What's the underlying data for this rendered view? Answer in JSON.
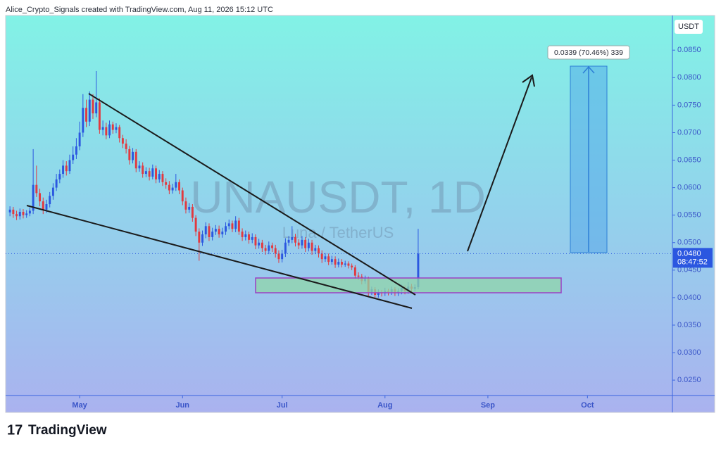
{
  "chart_data": {
    "type": "candlestick",
    "header": "Alice_Crypto_Signals created with TradingView.com, Aug 11, 2026 15:12 UTC",
    "watermark": "UNAUSDT, 1D",
    "watermark_sub": "Luna / TetherUS",
    "currency": "USDT",
    "last_price": {
      "value": 0.048,
      "label": "0.0480"
    },
    "countdown": "08:47:52",
    "measure_label": "0.0339 (70.46%) 339",
    "brand": "TradingView",
    "up_color": "#2b57e0",
    "down_color": "#e2393f",
    "xlim": [
      -22.3,
      178.6
    ],
    "xticks": [
      {
        "value": 0,
        "label": "May"
      },
      {
        "value": 31,
        "label": "Jun"
      },
      {
        "value": 61,
        "label": "Jul"
      },
      {
        "value": 92,
        "label": "Aug"
      },
      {
        "value": 123,
        "label": "Sep"
      },
      {
        "value": 153,
        "label": "Oct"
      }
    ],
    "ylim": [
      0.0222,
      0.0913
    ],
    "yticks": [
      {
        "value": 0.025,
        "label": "0.0250"
      },
      {
        "value": 0.03,
        "label": "0.0300"
      },
      {
        "value": 0.035,
        "label": "0.0350"
      },
      {
        "value": 0.04,
        "label": "0.0400"
      },
      {
        "value": 0.045,
        "label": "0.0450"
      },
      {
        "value": 0.05,
        "label": "0.0500"
      },
      {
        "value": 0.055,
        "label": "0.0550"
      },
      {
        "value": 0.06,
        "label": "0.0600"
      },
      {
        "value": 0.065,
        "label": "0.0650"
      },
      {
        "value": 0.07,
        "label": "0.0700"
      },
      {
        "value": 0.075,
        "label": "0.0750"
      },
      {
        "value": 0.08,
        "label": "0.0800"
      },
      {
        "value": 0.085,
        "label": "0.0850"
      }
    ],
    "x": [
      -21,
      -20,
      -19,
      -18,
      -17,
      -16,
      -15,
      -14,
      -13,
      -12,
      -11,
      -10,
      -9,
      -8,
      -7,
      -6,
      -5,
      -4,
      -3,
      -2,
      -1,
      0,
      1,
      2,
      3,
      4,
      5,
      6,
      7,
      8,
      9,
      10,
      11,
      12,
      13,
      14,
      15,
      16,
      17,
      18,
      19,
      20,
      21,
      22,
      23,
      24,
      25,
      26,
      27,
      28,
      29,
      30,
      31,
      32,
      33,
      34,
      35,
      36,
      37,
      38,
      39,
      40,
      41,
      42,
      43,
      44,
      45,
      46,
      47,
      48,
      49,
      50,
      51,
      52,
      53,
      54,
      55,
      56,
      57,
      58,
      59,
      60,
      61,
      62,
      63,
      64,
      65,
      66,
      67,
      68,
      69,
      70,
      71,
      72,
      73,
      74,
      75,
      76,
      77,
      78,
      79,
      80,
      81,
      82,
      83,
      84,
      85,
      86,
      87,
      88,
      89,
      90,
      91,
      92,
      93,
      94,
      95,
      96,
      97,
      98,
      99,
      100,
      101,
      102
    ],
    "open": [
      0.0555,
      0.056,
      0.0552,
      0.0548,
      0.0556,
      0.055,
      0.0553,
      0.0558,
      0.0605,
      0.059,
      0.0575,
      0.056,
      0.057,
      0.0585,
      0.06,
      0.0615,
      0.0625,
      0.064,
      0.063,
      0.065,
      0.066,
      0.0675,
      0.07,
      0.0745,
      0.072,
      0.076,
      0.0735,
      0.0755,
      0.0705,
      0.071,
      0.0695,
      0.0715,
      0.0705,
      0.071,
      0.069,
      0.068,
      0.067,
      0.065,
      0.0665,
      0.0635,
      0.064,
      0.0625,
      0.063,
      0.062,
      0.0635,
      0.0615,
      0.0625,
      0.061,
      0.0605,
      0.0595,
      0.06,
      0.061,
      0.0595,
      0.0575,
      0.056,
      0.0565,
      0.0545,
      0.052,
      0.05,
      0.0515,
      0.053,
      0.051,
      0.052,
      0.0525,
      0.0515,
      0.052,
      0.053,
      0.0535,
      0.0525,
      0.054,
      0.052,
      0.051,
      0.0515,
      0.0505,
      0.051,
      0.0495,
      0.05,
      0.049,
      0.0485,
      0.0495,
      0.049,
      0.048,
      0.047,
      0.048,
      0.05,
      0.0505,
      0.051,
      0.05,
      0.0495,
      0.0505,
      0.049,
      0.05,
      0.0485,
      0.049,
      0.048,
      0.047,
      0.0475,
      0.0465,
      0.047,
      0.046,
      0.0465,
      0.046,
      0.0462,
      0.0458,
      0.0455,
      0.044,
      0.0438,
      0.043,
      0.0435,
      0.041,
      0.0415,
      0.0405,
      0.041,
      0.0408,
      0.0412,
      0.041,
      0.0415,
      0.0408,
      0.0412,
      0.0418,
      0.0412,
      0.042,
      0.0416,
      0.0419
    ],
    "high": [
      0.0566,
      0.0565,
      0.0558,
      0.0562,
      0.0561,
      0.0559,
      0.0564,
      0.067,
      0.064,
      0.0598,
      0.0582,
      0.0578,
      0.0592,
      0.0608,
      0.0625,
      0.0633,
      0.065,
      0.0648,
      0.066,
      0.0675,
      0.069,
      0.072,
      0.077,
      0.076,
      0.0775,
      0.077,
      0.0812,
      0.0762,
      0.0722,
      0.0718,
      0.0722,
      0.072,
      0.0717,
      0.0714,
      0.0696,
      0.0688,
      0.0676,
      0.0672,
      0.067,
      0.0648,
      0.0646,
      0.0637,
      0.0636,
      0.0642,
      0.064,
      0.0632,
      0.063,
      0.0617,
      0.0612,
      0.0607,
      0.0625,
      0.0615,
      0.06,
      0.0582,
      0.0572,
      0.057,
      0.055,
      0.0526,
      0.0522,
      0.0537,
      0.0535,
      0.0527,
      0.0532,
      0.0531,
      0.0527,
      0.0537,
      0.0542,
      0.054,
      0.0548,
      0.0545,
      0.0526,
      0.0522,
      0.052,
      0.0517,
      0.0515,
      0.0507,
      0.0505,
      0.0496,
      0.0502,
      0.05,
      0.0496,
      0.0486,
      0.0487,
      0.0508,
      0.0512,
      0.053,
      0.0516,
      0.0506,
      0.0512,
      0.051,
      0.0507,
      0.0505,
      0.0496,
      0.0495,
      0.0486,
      0.0481,
      0.048,
      0.0476,
      0.0475,
      0.0471,
      0.047,
      0.0467,
      0.0466,
      0.0462,
      0.0459,
      0.0446,
      0.0443,
      0.044,
      0.0438,
      0.042,
      0.0419,
      0.0415,
      0.0414,
      0.0418,
      0.0416,
      0.042,
      0.0419,
      0.0417,
      0.0424,
      0.0422,
      0.0428,
      0.0425,
      0.0424,
      0.0525
    ],
    "low": [
      0.0548,
      0.0545,
      0.0541,
      0.0542,
      0.0544,
      0.0545,
      0.0548,
      0.0552,
      0.0583,
      0.0566,
      0.0552,
      0.0554,
      0.0564,
      0.0578,
      0.0594,
      0.0608,
      0.0618,
      0.0622,
      0.0625,
      0.0643,
      0.0652,
      0.0668,
      0.0692,
      0.071,
      0.0712,
      0.0725,
      0.0728,
      0.0698,
      0.0695,
      0.0688,
      0.069,
      0.0698,
      0.0699,
      0.0682,
      0.0672,
      0.0662,
      0.0642,
      0.0644,
      0.0628,
      0.0629,
      0.0618,
      0.0619,
      0.0613,
      0.0615,
      0.0608,
      0.0609,
      0.0603,
      0.0598,
      0.0588,
      0.0589,
      0.0594,
      0.0588,
      0.0568,
      0.0553,
      0.0554,
      0.0538,
      0.0512,
      0.0467,
      0.0494,
      0.0508,
      0.0503,
      0.0504,
      0.0514,
      0.0509,
      0.0509,
      0.0514,
      0.0524,
      0.0519,
      0.0519,
      0.0514,
      0.0503,
      0.0504,
      0.0498,
      0.0499,
      0.0488,
      0.0489,
      0.0483,
      0.0478,
      0.0479,
      0.0483,
      0.0473,
      0.0463,
      0.0464,
      0.0474,
      0.0494,
      0.0499,
      0.0493,
      0.0488,
      0.0489,
      0.0483,
      0.0484,
      0.0478,
      0.0479,
      0.0473,
      0.0463,
      0.0465,
      0.0459,
      0.046,
      0.0454,
      0.0455,
      0.0455,
      0.0456,
      0.0453,
      0.045,
      0.0434,
      0.0432,
      0.0424,
      0.0425,
      0.0403,
      0.0405,
      0.0398,
      0.04,
      0.0402,
      0.0403,
      0.0404,
      0.0405,
      0.0403,
      0.0403,
      0.0406,
      0.0406,
      0.0407,
      0.041,
      0.0411,
      0.0415
    ],
    "close": [
      0.056,
      0.0552,
      0.0548,
      0.0556,
      0.055,
      0.0553,
      0.0558,
      0.0605,
      0.059,
      0.0575,
      0.056,
      0.057,
      0.0585,
      0.06,
      0.0615,
      0.0625,
      0.064,
      0.063,
      0.065,
      0.066,
      0.0675,
      0.07,
      0.0745,
      0.072,
      0.076,
      0.0735,
      0.0755,
      0.0705,
      0.071,
      0.0695,
      0.0715,
      0.0705,
      0.071,
      0.069,
      0.068,
      0.067,
      0.065,
      0.0665,
      0.0635,
      0.064,
      0.0625,
      0.063,
      0.062,
      0.0635,
      0.0615,
      0.0625,
      0.061,
      0.0605,
      0.0595,
      0.06,
      0.061,
      0.0595,
      0.0575,
      0.056,
      0.0565,
      0.0545,
      0.052,
      0.05,
      0.0515,
      0.053,
      0.051,
      0.052,
      0.0525,
      0.0515,
      0.052,
      0.053,
      0.0535,
      0.0525,
      0.054,
      0.052,
      0.051,
      0.0515,
      0.0505,
      0.051,
      0.0495,
      0.05,
      0.049,
      0.0485,
      0.0495,
      0.049,
      0.048,
      0.047,
      0.048,
      0.05,
      0.0505,
      0.051,
      0.05,
      0.0495,
      0.0505,
      0.049,
      0.05,
      0.0485,
      0.049,
      0.048,
      0.047,
      0.0475,
      0.0465,
      0.047,
      0.046,
      0.0465,
      0.046,
      0.0462,
      0.0458,
      0.0455,
      0.044,
      0.0438,
      0.043,
      0.0435,
      0.041,
      0.0415,
      0.0405,
      0.041,
      0.0408,
      0.0412,
      0.041,
      0.0415,
      0.0408,
      0.0412,
      0.0418,
      0.0412,
      0.042,
      0.0416,
      0.0419,
      0.048
    ]
  }
}
